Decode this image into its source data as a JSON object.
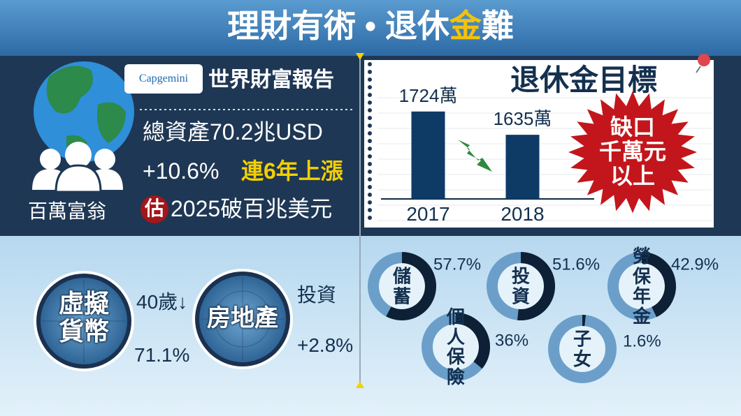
{
  "header": {
    "title_main": "理財有術 • 退休",
    "title_highlight": "金",
    "title_end": "難"
  },
  "wealth_report": {
    "brand": "Capgemini",
    "title": "世界財富報告",
    "total_assets": "總資產70.2兆USD",
    "growth": "+10.6%",
    "streak": "連6年上漲",
    "estimate_badge": "估",
    "forecast": "2025破百兆美元",
    "caption": "百萬富翁"
  },
  "retirement_target": {
    "title": "退休金目標",
    "gap_lines": [
      "缺口",
      "千萬元",
      "以上"
    ]
  },
  "crypto": {
    "label": "虛擬貨幣",
    "age": "40歲↓",
    "share": "71.1%"
  },
  "real_estate": {
    "label": "房地產",
    "note": "投資",
    "share": "+2.8%"
  },
  "chart_data": [
    {
      "type": "bar",
      "categories": [
        "2017",
        "2018"
      ],
      "values": [
        1724,
        1635
      ],
      "value_labels": [
        "1724萬",
        "1635萬"
      ],
      "color": "#0e3a66",
      "ylim": [
        1390,
        1750
      ]
    },
    {
      "type": "donut",
      "categories": [
        "儲蓄",
        "投資",
        "勞保年金",
        "個人保險",
        "子女"
      ],
      "values": [
        57.7,
        51.6,
        42.9,
        36,
        1.6
      ],
      "value_labels": [
        "57.7%",
        "51.6%",
        "42.9%",
        "36%",
        "1.6%"
      ],
      "color": "#0d2035",
      "track_color": "#6b9fca"
    }
  ]
}
